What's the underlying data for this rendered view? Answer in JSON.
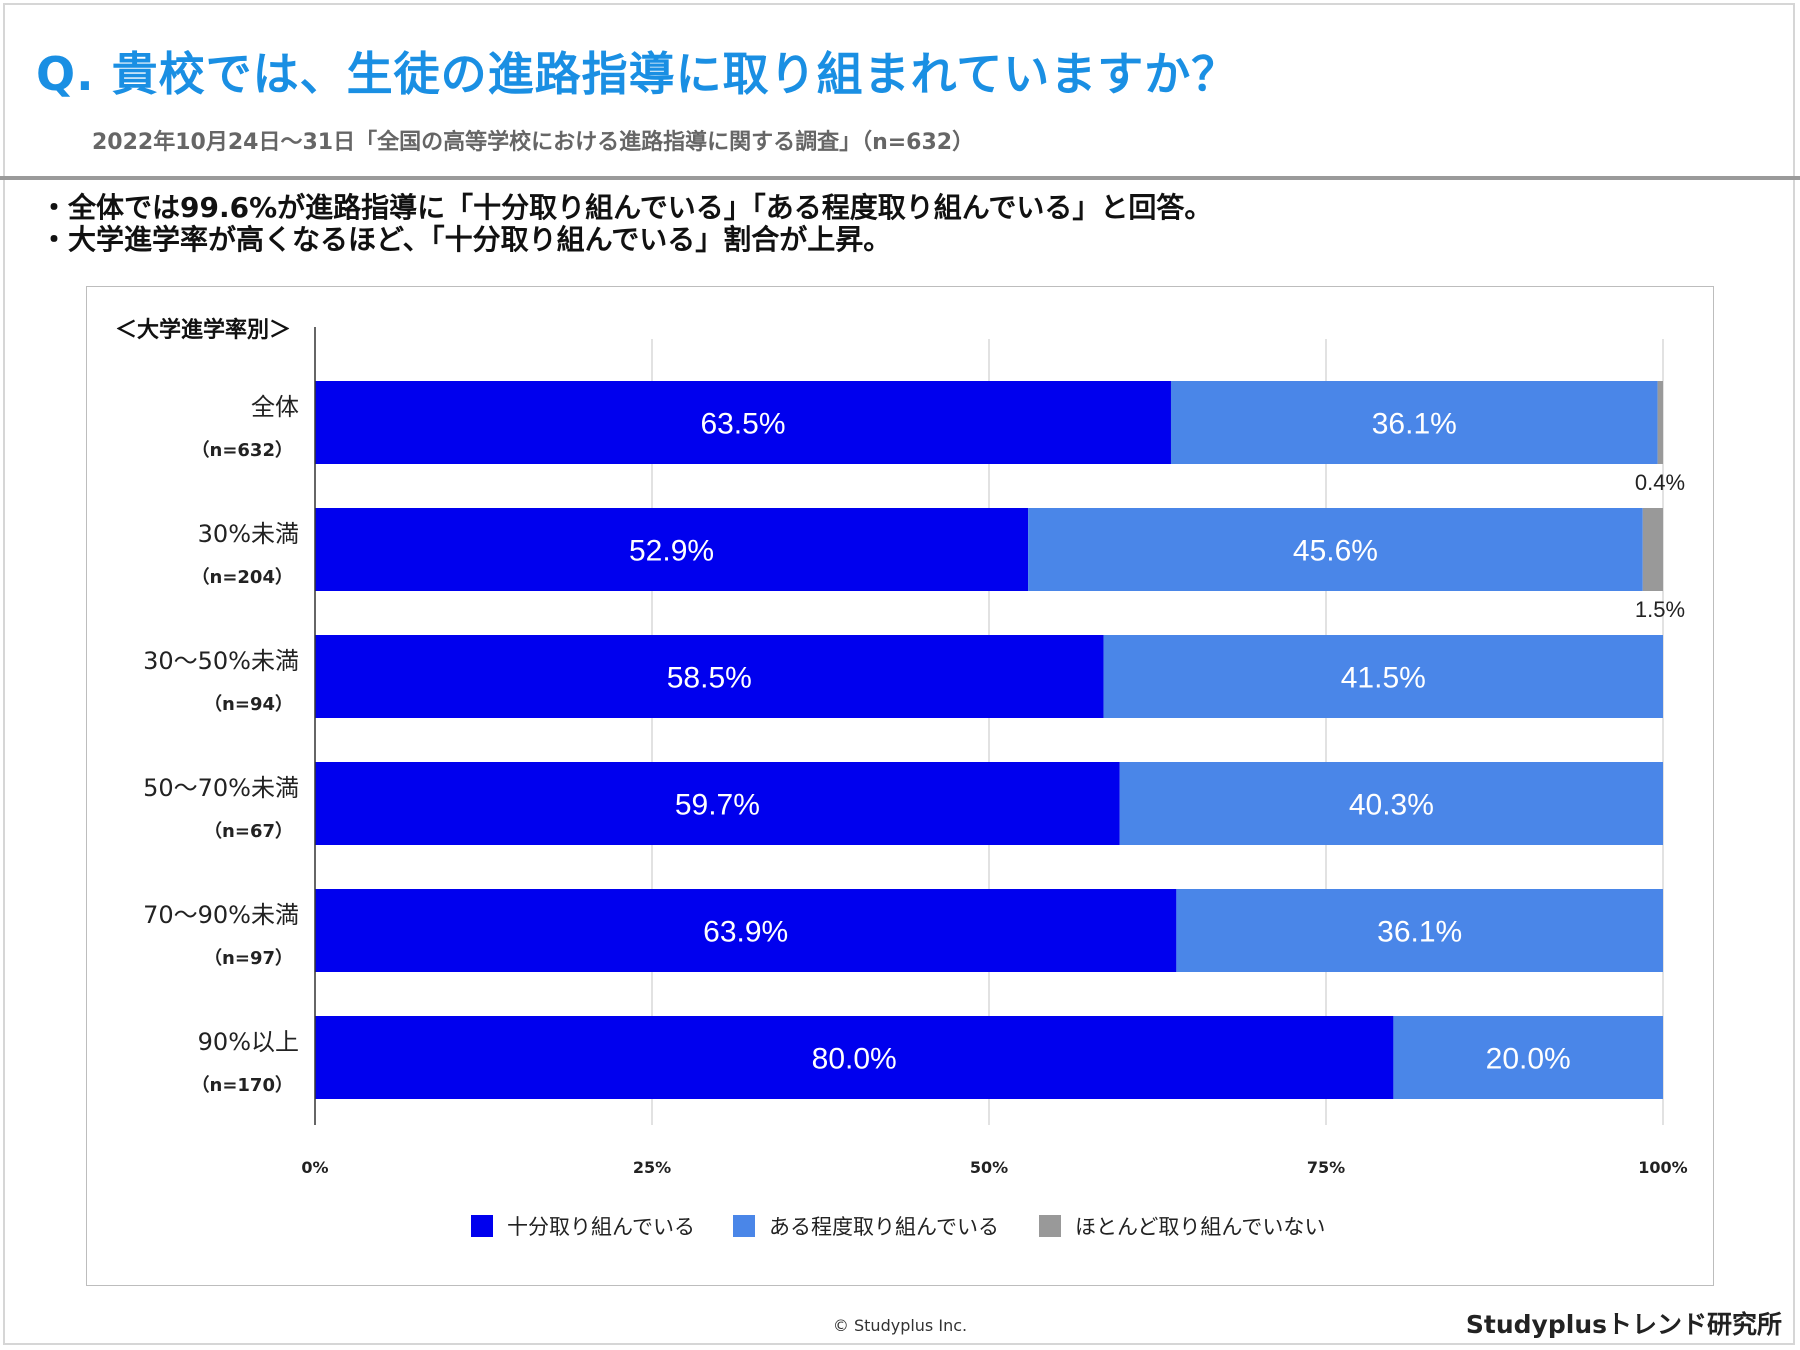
{
  "header": {
    "title": "Q. 貴校では、生徒の進路指導に取り組まれていますか？",
    "subtitle": "2022年10月24日～31日「全国の高等学校における進路指導に関する調査」（n=632）"
  },
  "bullets": [
    "・全体では99.6%が進路指導に「十分取り組んでいる」「ある程度取り組んでいる」と回答。",
    "・大学進学率が高くなるほど、「十分取り組んでいる」割合が上昇。"
  ],
  "chart_data": {
    "type": "bar",
    "orientation": "horizontal",
    "stacked": true,
    "group_title": "＜大学進学率別＞",
    "categories": [
      "全体",
      "30%未満",
      "30～50%未満",
      "50～70%未満",
      "70～90%未満",
      "90%以上"
    ],
    "sample_sizes": [
      "（n=632）",
      "（n=204）",
      "（n=94）",
      "（n=67）",
      "（n=97）",
      "（n=170）"
    ],
    "series": [
      {
        "name": "十分取り組んでいる",
        "color": "#0000ee",
        "values": [
          63.5,
          52.9,
          58.5,
          59.7,
          63.9,
          80.0
        ],
        "labels": [
          "63.5%",
          "52.9%",
          "58.5%",
          "59.7%",
          "63.9%",
          "80.0%"
        ]
      },
      {
        "name": "ある程度取り組んでいる",
        "color": "#4a86e8",
        "values": [
          36.1,
          45.6,
          41.5,
          40.3,
          36.1,
          20.0
        ],
        "labels": [
          "36.1%",
          "45.6%",
          "41.5%",
          "40.3%",
          "36.1%",
          "20.0%"
        ]
      },
      {
        "name": "ほとんど取り組んでいない",
        "color": "#999999",
        "values": [
          0.4,
          1.5,
          0,
          0,
          0,
          0
        ],
        "labels": [
          "0.4%",
          "1.5%",
          "",
          "",
          "",
          ""
        ]
      }
    ],
    "xlim": [
      0,
      100
    ],
    "xticks": [
      "0%",
      "25%",
      "50%",
      "75%",
      "100%"
    ],
    "grid": true,
    "legend": "bottom"
  },
  "footer": {
    "copyright": "© Studyplus Inc.",
    "brand": "Studyplusトレンド研究所"
  }
}
